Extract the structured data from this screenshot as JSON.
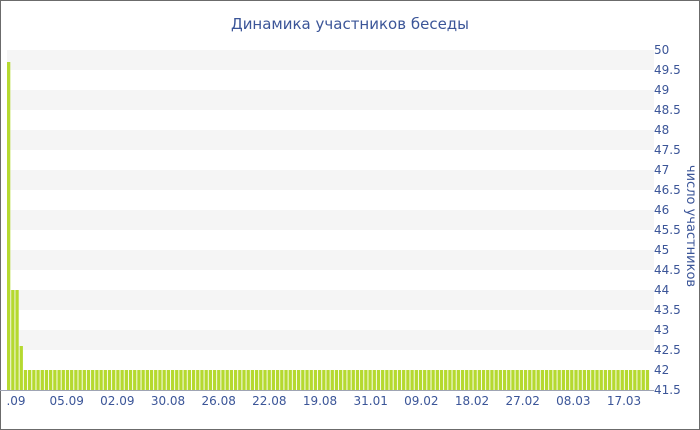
{
  "chart_data": {
    "type": "bar",
    "title": "Динамика участников беседы",
    "ylabel": "число участников",
    "xlabel": "",
    "ylim": [
      41.5,
      50
    ],
    "y_ticks": [
      41.5,
      42,
      42.5,
      43,
      43.5,
      44,
      44.5,
      45,
      45.5,
      46,
      46.5,
      47,
      47.5,
      48,
      48.5,
      49,
      49.5,
      50
    ],
    "y_axis_position": "right",
    "x_tick_labels": [
      ".09",
      "05.09",
      "02.09",
      "30.08",
      "26.08",
      "22.08",
      "19.08",
      "31.01",
      "09.02",
      "18.02",
      "27.02",
      "08.03",
      "17.03"
    ],
    "grid": "alternating horizontal bands",
    "legend": "none",
    "colors": {
      "bar": "#b5d930",
      "bar_edge": "#ffffff",
      "band": "#f5f5f5",
      "text": "#3b5598",
      "axis": "#9fa4b4"
    },
    "values": [
      49.7,
      44.0,
      44.0,
      42.6,
      42.0,
      42.0,
      42.0,
      42.0,
      42.0,
      42.0,
      42.0,
      42.0,
      42.0,
      42.0,
      42.0,
      42.0,
      42.0,
      42.0,
      42.0,
      42.0,
      42.0,
      42.0,
      42.0,
      42.0,
      42.0,
      42.0,
      42.0,
      42.0,
      42.0,
      42.0,
      42.0,
      42.0,
      42.0,
      42.0,
      42.0,
      42.0,
      42.0,
      42.0,
      42.0,
      42.0,
      42.0,
      42.0,
      42.0,
      42.0,
      42.0,
      42.0,
      42.0,
      42.0,
      42.0,
      42.0,
      42.0,
      42.0,
      42.0,
      42.0,
      42.0,
      42.0,
      42.0,
      42.0,
      42.0,
      42.0,
      42.0,
      42.0,
      42.0,
      42.0,
      42.0,
      42.0,
      42.0,
      42.0,
      42.0,
      42.0,
      42.0,
      42.0,
      42.0,
      42.0,
      42.0,
      42.0,
      42.0,
      42.0,
      42.0,
      42.0,
      42.0,
      42.0,
      42.0,
      42.0,
      42.0,
      42.0,
      42.0,
      42.0,
      42.0,
      42.0,
      42.0,
      42.0,
      42.0,
      42.0,
      42.0,
      42.0,
      42.0,
      42.0,
      42.0,
      42.0,
      42.0,
      42.0,
      42.0,
      42.0,
      42.0,
      42.0,
      42.0,
      42.0,
      42.0,
      42.0,
      42.0,
      42.0,
      42.0,
      42.0,
      42.0,
      42.0,
      42.0,
      42.0,
      42.0,
      42.0,
      42.0,
      42.0,
      42.0,
      42.0,
      42.0,
      42.0,
      42.0,
      42.0,
      42.0,
      42.0,
      42.0,
      42.0,
      42.0,
      42.0,
      42.0,
      42.0,
      42.0,
      42.0,
      42.0,
      42.0,
      42.0,
      42.0,
      42.0,
      42.0,
      42.0,
      42.0,
      42.0,
      42.0,
      42.0,
      42.0,
      42.0,
      42.0,
      42.0
    ]
  }
}
